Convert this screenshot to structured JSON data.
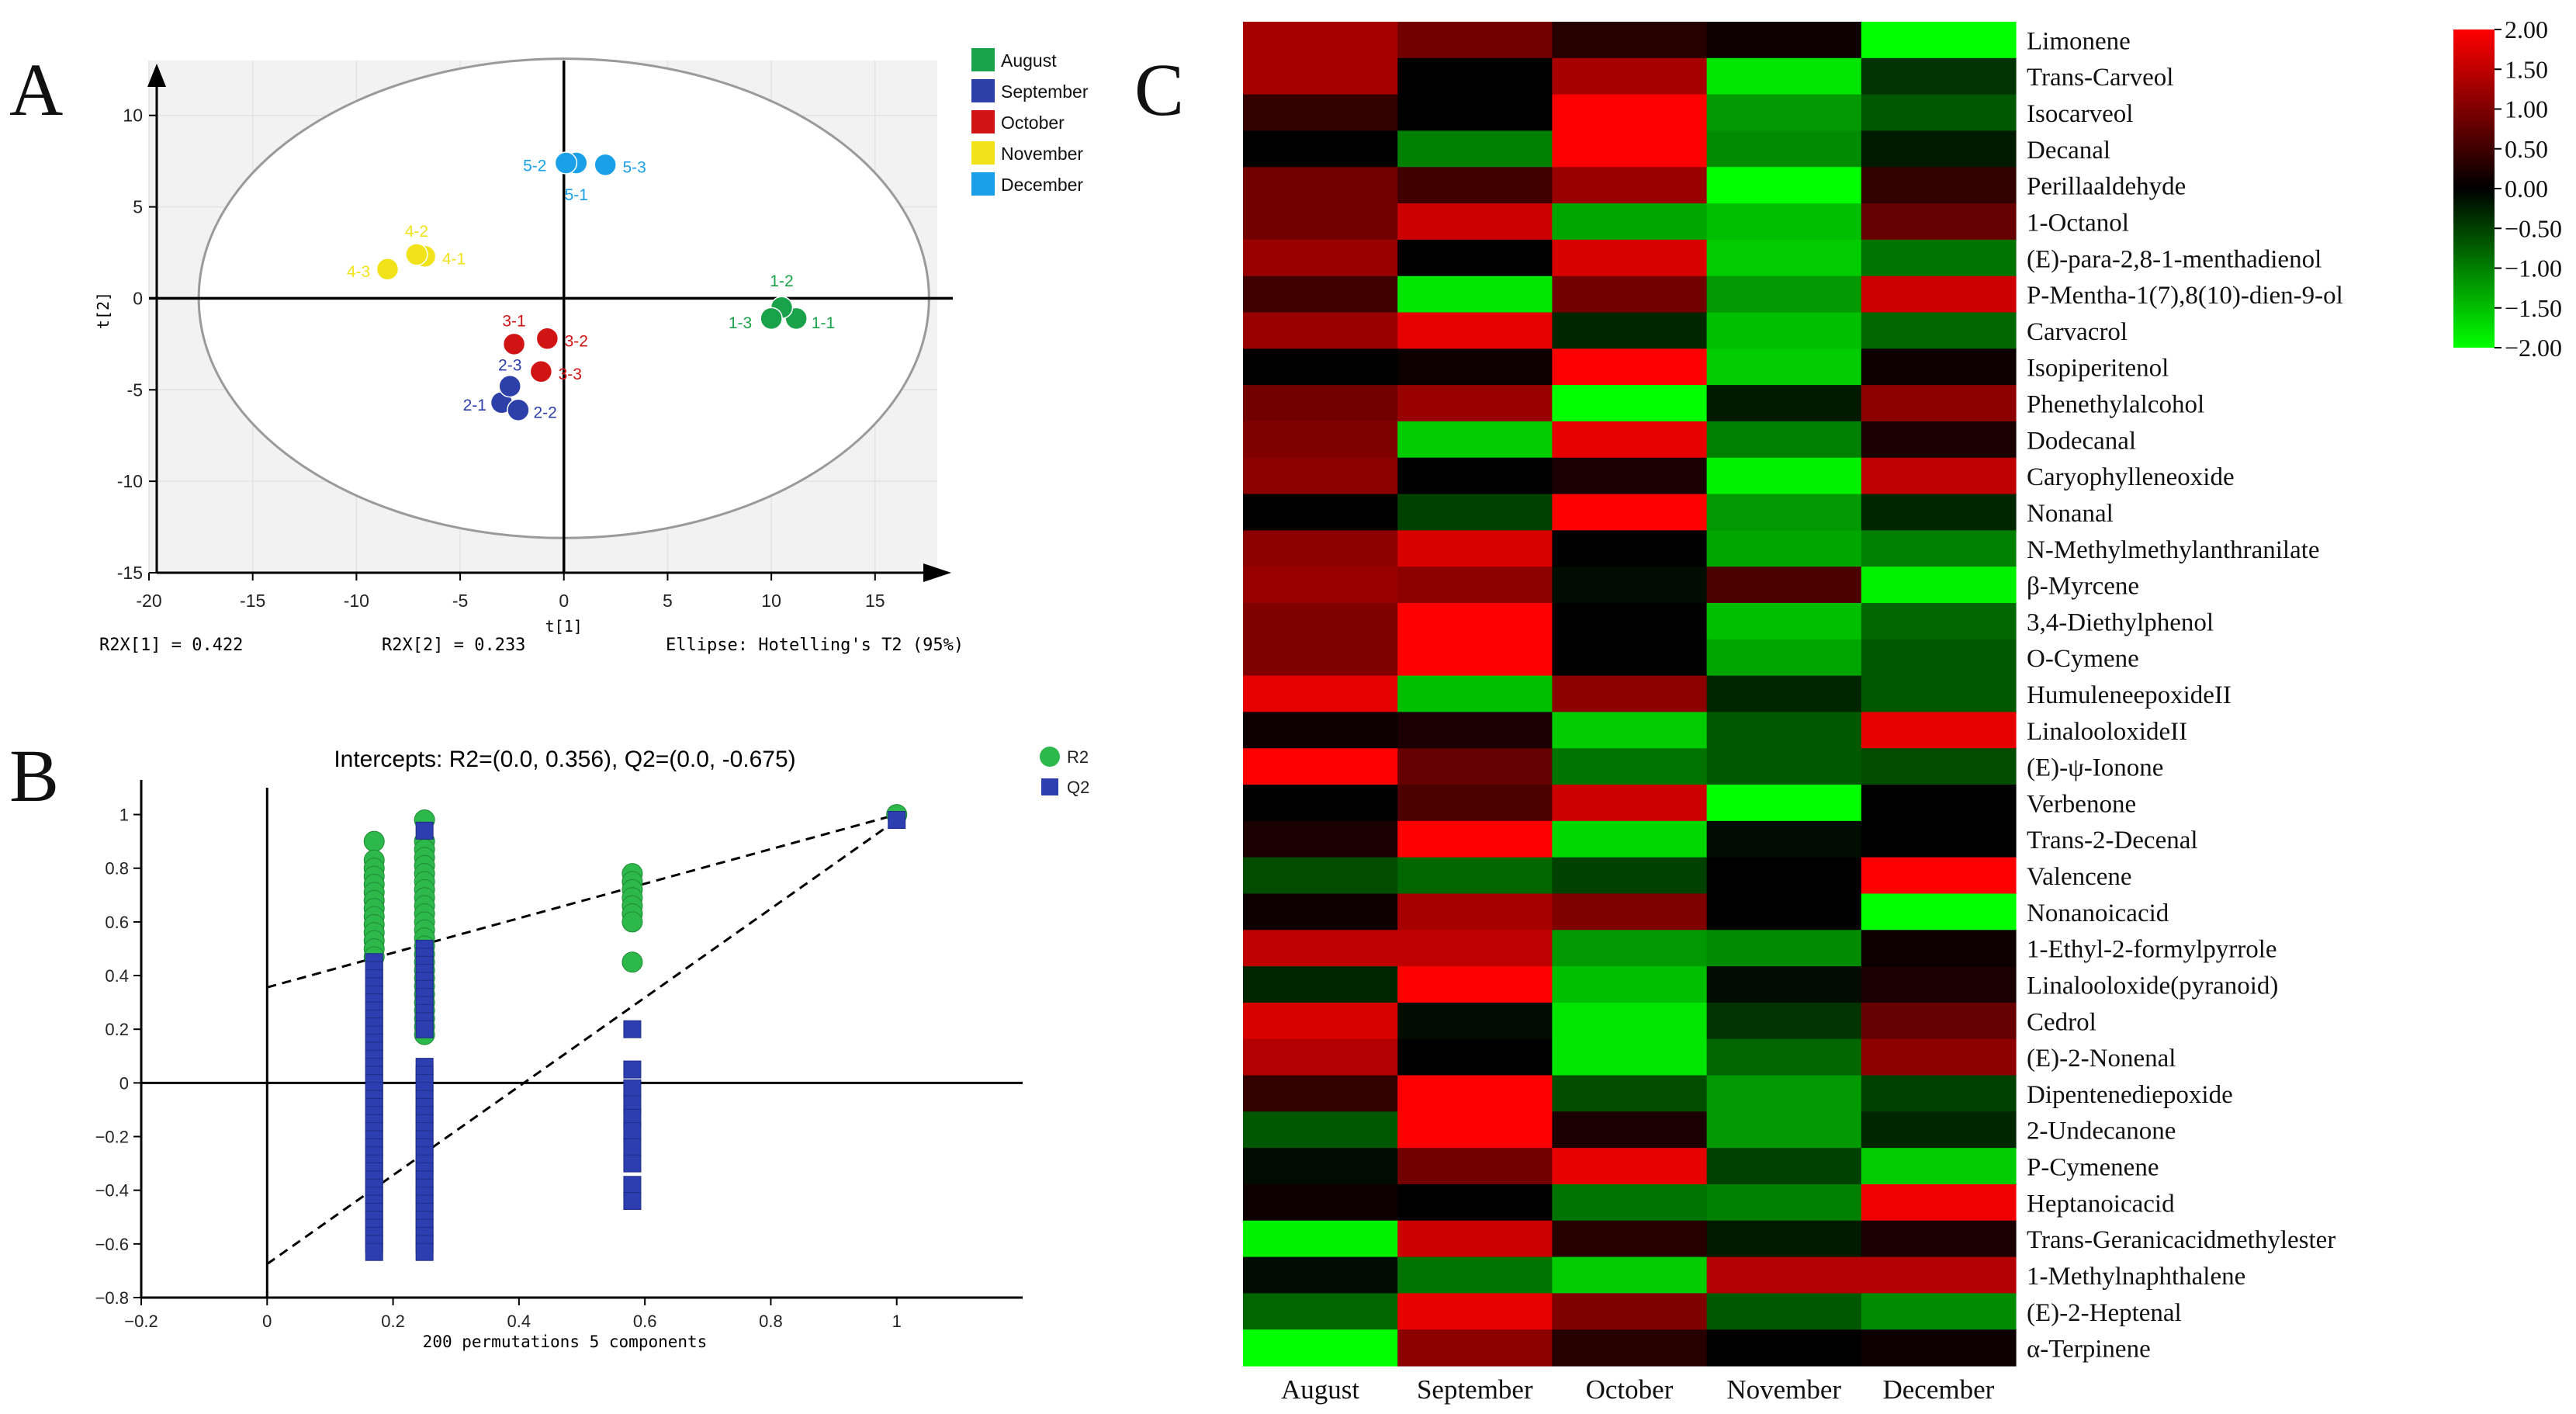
{
  "figure": {
    "panels": [
      "A",
      "B",
      "C"
    ]
  },
  "chart_data": [
    {
      "panel": "A",
      "type": "scatter",
      "title": "",
      "xlabel": "t[1]",
      "ylabel": "t[2]",
      "xlim": [
        -20,
        18
      ],
      "ylim": [
        -15,
        13
      ],
      "xticks": [
        -20,
        -15,
        -10,
        -5,
        0,
        5,
        10,
        15
      ],
      "yticks": [
        -15,
        -10,
        -5,
        0,
        5,
        10
      ],
      "ellipse": {
        "rx": 17.6,
        "ry": 13.1
      },
      "footer": {
        "r2x1": "R2X[1] = 0.422",
        "r2x2": "R2X[2] = 0.233",
        "ellipse": "Ellipse: Hotelling's T2 (95%)"
      },
      "legend": [
        {
          "name": "August",
          "color": "#1aa24a"
        },
        {
          "name": "September",
          "color": "#2d3fa8"
        },
        {
          "name": "October",
          "color": "#d01414"
        },
        {
          "name": "November",
          "color": "#f2e21a"
        },
        {
          "name": "December",
          "color": "#1aa0e8"
        }
      ],
      "points": [
        {
          "label": "1-1",
          "x": 11.2,
          "y": -1.1,
          "group": 0,
          "lx": 12.5,
          "ly": -1.3
        },
        {
          "label": "1-2",
          "x": 10.5,
          "y": -0.5,
          "group": 0,
          "lx": 10.5,
          "ly": 1.0
        },
        {
          "label": "1-3",
          "x": 10.0,
          "y": -1.1,
          "group": 0,
          "lx": 8.5,
          "ly": -1.3
        },
        {
          "label": "2-1",
          "x": -3.0,
          "y": -5.7,
          "group": 1,
          "lx": -4.3,
          "ly": -5.8
        },
        {
          "label": "2-2",
          "x": -2.2,
          "y": -6.1,
          "group": 1,
          "lx": -0.9,
          "ly": -6.2
        },
        {
          "label": "2-3",
          "x": -2.6,
          "y": -4.8,
          "group": 1,
          "lx": -2.6,
          "ly": -3.6
        },
        {
          "label": "3-1",
          "x": -2.4,
          "y": -2.5,
          "group": 2,
          "lx": -2.4,
          "ly": -1.2
        },
        {
          "label": "3-2",
          "x": -0.8,
          "y": -2.2,
          "group": 2,
          "lx": 0.6,
          "ly": -2.3
        },
        {
          "label": "3-3",
          "x": -1.1,
          "y": -4.0,
          "group": 2,
          "lx": 0.3,
          "ly": -4.1
        },
        {
          "label": "4-1",
          "x": -6.7,
          "y": 2.3,
          "group": 3,
          "lx": -5.3,
          "ly": 2.2
        },
        {
          "label": "4-2",
          "x": -7.1,
          "y": 2.4,
          "group": 3,
          "lx": -7.1,
          "ly": 3.7
        },
        {
          "label": "4-3",
          "x": -8.5,
          "y": 1.6,
          "group": 3,
          "lx": -9.9,
          "ly": 1.5
        },
        {
          "label": "5-1",
          "x": 0.6,
          "y": 7.4,
          "group": 4,
          "lx": 0.6,
          "ly": 5.7
        },
        {
          "label": "5-2",
          "x": 0.1,
          "y": 7.4,
          "group": 4,
          "lx": -1.4,
          "ly": 7.3
        },
        {
          "label": "5-3",
          "x": 2.0,
          "y": 7.3,
          "group": 4,
          "lx": 3.4,
          "ly": 7.2
        }
      ]
    },
    {
      "panel": "B",
      "type": "scatter",
      "title": "Intercepts: R2=(0.0, 0.356), Q2=(0.0, -0.675)",
      "xlabel": "200 permutations 5 components",
      "xlim": [
        -0.2,
        1.2
      ],
      "ylim": [
        -0.8,
        1.1
      ],
      "xticks": [
        -0.2,
        0,
        0.2,
        0.4,
        0.6,
        0.8,
        1
      ],
      "yticks": [
        -0.8,
        -0.6,
        -0.4,
        -0.2,
        0,
        0.2,
        0.4,
        0.6,
        0.8,
        1
      ],
      "legend": [
        {
          "name": "R2",
          "color": "#2cb84a",
          "marker": "circle"
        },
        {
          "name": "Q2",
          "color": "#2d3fb0",
          "marker": "square"
        }
      ],
      "regression": {
        "r2": {
          "intercept": 0.356,
          "end": [
            1,
            1.0
          ]
        },
        "q2": {
          "intercept": -0.675,
          "end": [
            1,
            0.98
          ]
        }
      },
      "series": [
        {
          "name": "R2",
          "x": 0.17,
          "values": [
            0.9,
            0.83,
            0.8,
            0.77,
            0.74,
            0.71,
            0.68,
            0.65,
            0.62,
            0.59,
            0.56,
            0.53,
            0.5,
            0.47
          ]
        },
        {
          "name": "R2",
          "x": 0.25,
          "values": [
            0.98,
            0.9,
            0.87,
            0.84,
            0.81,
            0.78,
            0.75,
            0.72,
            0.69,
            0.66,
            0.63,
            0.6,
            0.57,
            0.54,
            0.51,
            0.48,
            0.45,
            0.42,
            0.39,
            0.36,
            0.33,
            0.3,
            0.27,
            0.24,
            0.21,
            0.18
          ]
        },
        {
          "name": "R2",
          "x": 0.58,
          "values": [
            0.78,
            0.75,
            0.72,
            0.69,
            0.66,
            0.63,
            0.6,
            0.45
          ]
        },
        {
          "name": "R2",
          "x": 1.0,
          "values": [
            1.0
          ]
        },
        {
          "name": "Q2",
          "x": 0.17,
          "values": [
            0.45,
            0.42,
            0.39,
            0.36,
            0.33,
            0.3,
            0.27,
            0.24,
            0.21,
            0.18,
            0.15,
            0.12,
            0.09,
            0.06,
            0.03,
            0.0,
            -0.03,
            -0.06,
            -0.09,
            -0.12,
            -0.15,
            -0.18,
            -0.21,
            -0.24,
            -0.27,
            -0.3,
            -0.33,
            -0.36,
            -0.39,
            -0.42,
            -0.45,
            -0.48,
            -0.51,
            -0.54,
            -0.57,
            -0.6,
            -0.63
          ]
        },
        {
          "name": "Q2",
          "x": 0.25,
          "values": [
            0.94,
            0.5,
            0.47,
            0.44,
            0.41,
            0.38,
            0.35,
            0.32,
            0.29,
            0.26,
            0.23,
            0.2,
            0.06,
            0.03,
            0.0,
            -0.03,
            -0.06,
            -0.09,
            -0.12,
            -0.15,
            -0.18,
            -0.21,
            -0.24,
            -0.27,
            -0.3,
            -0.33,
            -0.36,
            -0.39,
            -0.42,
            -0.45,
            -0.48,
            -0.51,
            -0.54,
            -0.57,
            -0.6,
            -0.63
          ]
        },
        {
          "name": "Q2",
          "x": 0.58,
          "values": [
            0.2,
            0.05,
            -0.02,
            -0.08,
            -0.13,
            -0.18,
            -0.24,
            -0.3,
            -0.38,
            -0.44
          ]
        },
        {
          "name": "Q2",
          "x": 1.0,
          "values": [
            0.98
          ]
        }
      ]
    },
    {
      "panel": "C",
      "type": "heatmap",
      "columns": [
        "August",
        "September",
        "October",
        "November",
        "December"
      ],
      "rows": [
        "Limonene",
        "Trans-Carveol",
        "Isocarveol",
        "Decanal",
        "Perillaaldehyde",
        "1-Octanol",
        "(E)-para-2,8-1-menthadienol",
        "P-Mentha-1(7),8(10)-dien-9-ol",
        "Carvacrol",
        "Isopiperitenol",
        "Phenethylalcohol",
        "Dodecanal",
        "Caryophylleneoxide",
        "Nonanal",
        "N-Methylmethylanthranilate",
        "β-Myrcene",
        "3,4-Diethylphenol",
        "O-Cymene",
        "HumuleneepoxideII",
        "LinalooloxideII",
        "(E)-ψ-Ionone",
        "Verbenone",
        "Trans-2-Decenal",
        "Valencene",
        "Nonanoicacid",
        "1-Ethyl-2-formylpyrrole",
        "Linalooloxide(pyranoid)",
        "Cedrol",
        "(E)-2-Nonenal",
        "Dipentenediepoxide",
        "2-Undecanone",
        "P-Cymenene",
        "Heptanoicacid",
        "Trans-Geranicacidmethylester",
        "1-Methylnaphthalene",
        "(E)-2-Heptenal",
        "α-Terpinene"
      ],
      "values": [
        [
          1.3,
          0.9,
          0.3,
          0.1,
          -2.0
        ],
        [
          1.3,
          0.0,
          1.3,
          -1.8,
          -0.4
        ],
        [
          0.4,
          0.0,
          2.0,
          -1.2,
          -0.7
        ],
        [
          0.0,
          -1.0,
          2.0,
          -1.1,
          -0.2
        ],
        [
          0.9,
          0.5,
          1.2,
          -2.0,
          0.4
        ],
        [
          0.9,
          1.6,
          -1.3,
          -1.5,
          0.8
        ],
        [
          1.2,
          0.0,
          1.7,
          -1.6,
          -0.9
        ],
        [
          0.5,
          -1.8,
          0.9,
          -1.2,
          1.6
        ],
        [
          1.2,
          1.8,
          -0.3,
          -1.5,
          -0.8
        ],
        [
          0.0,
          0.1,
          2.0,
          -1.6,
          0.1
        ],
        [
          0.9,
          1.2,
          -2.0,
          -0.2,
          1.1
        ],
        [
          1.0,
          -1.6,
          1.8,
          -1.0,
          0.2
        ],
        [
          1.1,
          0.0,
          0.2,
          -1.9,
          1.5
        ],
        [
          0.0,
          -0.5,
          2.0,
          -1.2,
          -0.3
        ],
        [
          1.1,
          1.7,
          0.0,
          -1.3,
          -1.0
        ],
        [
          1.2,
          1.1,
          -0.1,
          0.6,
          -1.9
        ],
        [
          1.0,
          2.0,
          0.0,
          -1.5,
          -0.8
        ],
        [
          1.0,
          2.0,
          0.0,
          -1.3,
          -0.7
        ],
        [
          1.8,
          -1.5,
          1.1,
          -0.3,
          -0.7
        ],
        [
          0.1,
          0.2,
          -1.6,
          -0.7,
          1.8
        ],
        [
          2.0,
          0.8,
          -0.9,
          -0.7,
          -0.6
        ],
        [
          0.0,
          0.6,
          1.6,
          -2.0,
          0.0
        ],
        [
          0.2,
          2.0,
          -1.7,
          -0.1,
          0.0
        ],
        [
          -0.6,
          -0.8,
          -0.5,
          0.0,
          2.0
        ],
        [
          0.1,
          1.3,
          1.0,
          0.0,
          -2.0
        ],
        [
          1.5,
          1.5,
          -1.2,
          -1.1,
          0.1
        ],
        [
          -0.3,
          2.0,
          -1.5,
          -0.1,
          0.2
        ],
        [
          1.7,
          -0.1,
          -1.8,
          -0.4,
          0.8
        ],
        [
          1.4,
          0.0,
          -1.8,
          -0.8,
          1.1
        ],
        [
          0.4,
          2.0,
          -0.6,
          -1.2,
          -0.5
        ],
        [
          -0.7,
          2.0,
          0.2,
          -1.2,
          -0.3
        ],
        [
          -0.1,
          0.9,
          1.8,
          -0.5,
          -1.6
        ],
        [
          0.1,
          0.0,
          -0.9,
          -1.0,
          1.9
        ],
        [
          -1.9,
          1.6,
          0.3,
          -0.2,
          0.2
        ],
        [
          -0.1,
          -0.9,
          -1.6,
          1.4,
          1.4
        ],
        [
          -0.8,
          1.8,
          1.0,
          -0.7,
          -1.1
        ],
        [
          -2.0,
          1.1,
          0.3,
          0.0,
          0.1
        ]
      ],
      "colorbar": {
        "min": -2.0,
        "max": 2.0,
        "ticks": [
          "2.00",
          "1.50",
          "1.00",
          "0.50",
          "0.00",
          "-0.50",
          "-1.00",
          "-1.50",
          "-2.00"
        ]
      }
    }
  ]
}
